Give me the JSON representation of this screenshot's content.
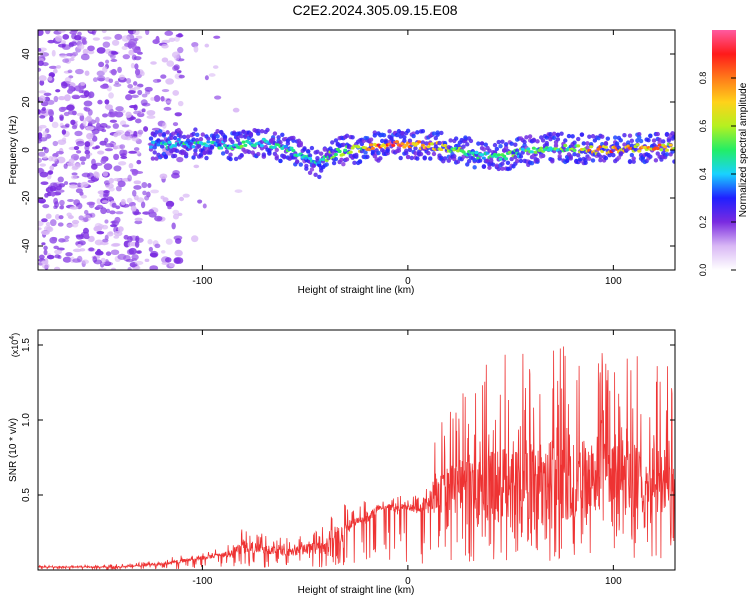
{
  "title": "C2E2.2024.305.09.15.E08",
  "colors": {
    "frame": "#000000",
    "snr_line": "#ee3333",
    "scatter_low": "#d9b8f5",
    "scatter_mid": "#6a1fd9",
    "ridge_cyan": "#19d2c8",
    "ridge_green": "#33ee33",
    "ridge_red": "#ff2222"
  },
  "chart_data": [
    {
      "type": "heatmap",
      "xlabel": "Height of straight line (km)",
      "ylabel": "Frequency (Hz)",
      "xlim": [
        -180,
        130
      ],
      "ylim": [
        -50,
        50
      ],
      "x_ticks": [
        "-100",
        "0",
        "100"
      ],
      "x_tick_values": [
        -100,
        0,
        100
      ],
      "y_ticks": [
        "-40",
        "-20",
        "0",
        "20",
        "40"
      ],
      "y_tick_values": [
        -40,
        -20,
        0,
        20,
        40
      ],
      "grid": false,
      "ridge_profile": {
        "x": [
          -125,
          -110,
          -95,
          -80,
          -70,
          -60,
          -50,
          -44,
          -40,
          -30,
          -20,
          -10,
          0,
          10,
          20,
          30,
          40,
          50,
          60,
          70,
          80,
          90,
          100,
          110,
          120,
          130
        ],
        "freq_hz": [
          2,
          3,
          2,
          2,
          3,
          1,
          -3,
          -6,
          -3,
          0,
          1,
          2,
          2,
          2,
          1,
          -1,
          -3,
          -2,
          0,
          1,
          1,
          0,
          0,
          1,
          1,
          1
        ],
        "peak_amplitude": [
          0.45,
          0.5,
          0.5,
          0.55,
          0.5,
          0.5,
          0.5,
          0.45,
          0.55,
          0.6,
          0.75,
          0.95,
          0.95,
          0.95,
          0.6,
          0.55,
          0.5,
          0.55,
          0.55,
          0.55,
          0.6,
          0.85,
          0.9,
          0.85,
          0.85,
          0.75
        ]
      },
      "diffuse_scatter_region_km": [
        -180,
        -110
      ],
      "colorbar": {
        "label": "Normalized spectral amplitude",
        "ticks": [
          "0.0",
          "0.2",
          "0.4",
          "0.6",
          "0.8"
        ],
        "tick_values": [
          0.0,
          0.2,
          0.4,
          0.6,
          0.8
        ],
        "range": [
          0,
          1
        ],
        "colormap": [
          "#ffffff",
          "#d9b8f5",
          "#7a2be0",
          "#2020ff",
          "#19d2ff",
          "#22ee66",
          "#b5f020",
          "#ffd21a",
          "#ff7a1a",
          "#ff1a1a",
          "#ff5aa0"
        ]
      }
    },
    {
      "type": "line",
      "xlabel": "Height of straight line (km)",
      "ylabel": "SNR (10 * v/v)",
      "scale_label": "(x10",
      "scale_exponent": "4",
      "xlim": [
        -180,
        130
      ],
      "ylim": [
        0,
        1.6
      ],
      "x_ticks": [
        "-100",
        "0",
        "100"
      ],
      "x_tick_values": [
        -100,
        0,
        100
      ],
      "y_ticks": [
        "0.5",
        "1.0",
        "1.5"
      ],
      "y_tick_values": [
        0.5,
        1.0,
        1.5
      ],
      "grid": false,
      "series": [
        {
          "x": [
            -180,
            -160,
            -140,
            -130,
            -120,
            -110,
            -100,
            -90,
            -85,
            -80,
            -70,
            -60,
            -55,
            -50,
            -40,
            -35,
            -30,
            -25,
            -20,
            -15,
            -10,
            -5,
            0,
            5,
            10,
            15,
            20,
            25,
            30,
            40,
            50,
            60,
            70,
            80,
            90,
            100,
            110,
            120,
            130
          ],
          "baseline": [
            0.02,
            0.02,
            0.02,
            0.03,
            0.04,
            0.06,
            0.08,
            0.1,
            0.12,
            0.15,
            0.14,
            0.12,
            0.13,
            0.14,
            0.15,
            0.2,
            0.28,
            0.32,
            0.35,
            0.4,
            0.42,
            0.4,
            0.42,
            0.4,
            0.45,
            0.5,
            0.55,
            0.55,
            0.55,
            0.55,
            0.6,
            0.6,
            0.6,
            0.6,
            0.65,
            0.65,
            0.6,
            0.6,
            0.6
          ],
          "envelope": [
            0.03,
            0.03,
            0.04,
            0.05,
            0.07,
            0.1,
            0.12,
            0.15,
            0.25,
            0.28,
            0.25,
            0.22,
            0.25,
            0.25,
            0.3,
            0.45,
            0.5,
            0.4,
            0.48,
            0.5,
            0.45,
            0.5,
            0.48,
            0.5,
            0.7,
            0.95,
            1.1,
            1.2,
            1.3,
            1.45,
            1.5,
            1.5,
            1.5,
            1.5,
            1.5,
            1.45,
            1.45,
            1.4,
            1.35
          ]
        }
      ]
    }
  ]
}
